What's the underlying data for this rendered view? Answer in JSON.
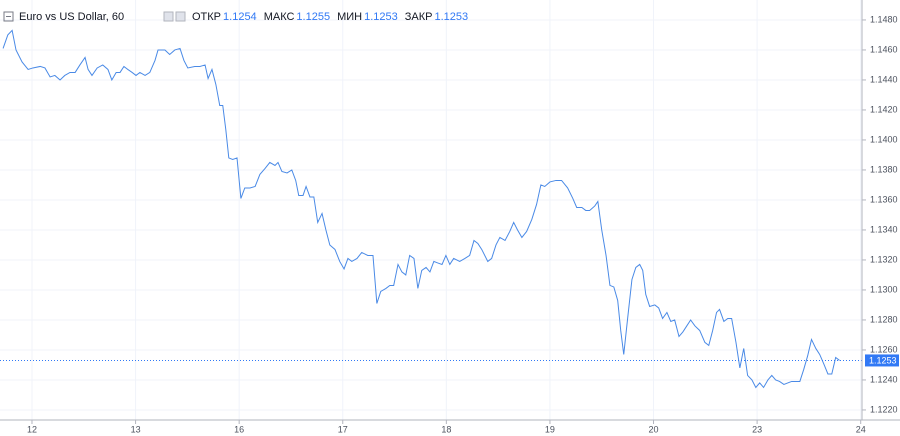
{
  "chart_data": {
    "type": "line",
    "title": "Euro vs US Dollar, 60",
    "ohlc": [
      {
        "label": "ОТКР",
        "value": 1.1254
      },
      {
        "label": "МАКС",
        "value": 1.1255
      },
      {
        "label": "МИН",
        "value": 1.1253
      },
      {
        "label": "ЗАКР",
        "value": 1.1253
      }
    ],
    "last_price": 1.1253,
    "color": "#4a8ae6",
    "x": [
      1.3,
      2.4,
      3.4,
      4.3,
      5.7,
      7.1,
      8.2,
      9.9,
      11.0,
      12.2,
      13.3,
      14.5,
      15.6,
      16.8,
      18.0,
      19.1,
      20.3,
      21.0,
      21.9,
      23.1,
      24.4,
      25.6,
      26.5,
      27.5,
      28.4,
      29.3,
      30.2,
      31.2,
      32.1,
      33.0,
      34.2,
      35.3,
      36.5,
      37.2,
      38.8,
      39.9,
      41.1,
      42.3,
      43.2,
      44.1,
      45.7,
      46.9,
      48.1,
      48.8,
      49.7,
      50.6,
      51.5,
      52.2,
      52.9,
      53.6,
      54.5,
      55.5,
      56.4,
      57.3,
      58.5,
      59.7,
      60.8,
      62.0,
      63.1,
      64.3,
      65.0,
      65.9,
      67.1,
      68.2,
      69.1,
      69.8,
      70.8,
      71.5,
      72.4,
      73.3,
      74.2,
      75.2,
      76.1,
      77.0,
      78.2,
      79.3,
      80.3,
      81.2,
      82.1,
      83.3,
      84.4,
      85.8,
      87.0,
      87.9,
      88.8,
      90.0,
      90.9,
      91.8,
      92.8,
      93.7,
      94.6,
      95.5,
      96.5,
      97.4,
      98.3,
      99.3,
      100.2,
      101.1,
      102.0,
      103.0,
      103.9,
      104.8,
      105.7,
      107.1,
      108.3,
      109.4,
      110.4,
      111.3,
      112.2,
      113.6,
      114.5,
      115.5,
      116.4,
      117.6,
      118.7,
      119.6,
      120.5,
      121.5,
      122.6,
      123.8,
      124.9,
      125.9,
      126.8,
      128.0,
      129.4,
      130.7,
      132.1,
      133.3,
      134.2,
      135.4,
      136.3,
      137.2,
      138.4,
      139.1,
      140.0,
      141.0,
      141.9,
      142.8,
      143.7,
      144.4,
      145.1,
      146.0,
      147.0,
      147.9,
      148.8,
      149.5,
      150.2,
      151.1,
      152.3,
      153.2,
      154.1,
      155.1,
      156.0,
      156.9,
      157.9,
      158.8,
      159.7,
      160.6,
      161.6,
      162.7,
      163.9,
      164.8,
      165.7,
      166.6,
      167.3,
      168.3,
      169.2,
      170.1,
      171.1,
      172.0,
      172.9,
      173.8,
      174.8,
      175.7,
      176.6,
      177.5,
      178.5,
      179.4,
      180.3,
      181.2,
      182.2,
      184.0,
      185.9,
      186.8,
      187.7,
      188.6,
      189.6,
      190.5,
      191.4,
      192.4,
      193.3,
      194.2,
      195.1
    ],
    "values": [
      1.1461,
      1.147,
      1.1473,
      1.146,
      1.1452,
      1.1447,
      1.1448,
      1.1449,
      1.1448,
      1.1442,
      1.1443,
      1.144,
      1.1443,
      1.1445,
      1.1445,
      1.145,
      1.1455,
      1.1447,
      1.1443,
      1.1448,
      1.145,
      1.1447,
      1.144,
      1.1445,
      1.1445,
      1.1449,
      1.1447,
      1.1445,
      1.1443,
      1.1445,
      1.1443,
      1.1445,
      1.1453,
      1.146,
      1.146,
      1.1457,
      1.146,
      1.1461,
      1.1453,
      1.1448,
      1.1449,
      1.1449,
      1.145,
      1.1441,
      1.1447,
      1.1437,
      1.1423,
      1.1423,
      1.1407,
      1.1388,
      1.1387,
      1.1388,
      1.1361,
      1.1368,
      1.1368,
      1.1369,
      1.1377,
      1.1381,
      1.1385,
      1.1383,
      1.1385,
      1.1379,
      1.1378,
      1.138,
      1.1373,
      1.1363,
      1.1363,
      1.1369,
      1.1362,
      1.1362,
      1.1345,
      1.1351,
      1.134,
      1.133,
      1.1327,
      1.1319,
      1.1314,
      1.1321,
      1.1319,
      1.1321,
      1.1325,
      1.1323,
      1.1323,
      1.1291,
      1.1299,
      1.1301,
      1.1303,
      1.1303,
      1.1317,
      1.1312,
      1.131,
      1.1323,
      1.1321,
      1.1301,
      1.1313,
      1.1315,
      1.1312,
      1.1319,
      1.1318,
      1.1317,
      1.1323,
      1.1317,
      1.1321,
      1.1319,
      1.1321,
      1.1323,
      1.1333,
      1.1331,
      1.1327,
      1.1319,
      1.1321,
      1.133,
      1.1335,
      1.1333,
      1.1339,
      1.1345,
      1.134,
      1.1335,
      1.1339,
      1.1347,
      1.1357,
      1.137,
      1.1369,
      1.1372,
      1.1373,
      1.1373,
      1.1368,
      1.1361,
      1.1355,
      1.1355,
      1.1353,
      1.1353,
      1.1356,
      1.1359,
      1.134,
      1.1323,
      1.1303,
      1.1302,
      1.1293,
      1.1273,
      1.1257,
      1.1281,
      1.1307,
      1.1315,
      1.1317,
      1.1313,
      1.1297,
      1.1289,
      1.129,
      1.1288,
      1.1281,
      1.1285,
      1.1279,
      1.128,
      1.1269,
      1.1272,
      1.1276,
      1.128,
      1.1276,
      1.1273,
      1.1265,
      1.1263,
      1.1273,
      1.1285,
      1.1287,
      1.1279,
      1.1281,
      1.1281,
      1.1265,
      1.1248,
      1.1261,
      1.1243,
      1.124,
      1.1235,
      1.1238,
      1.1235,
      1.124,
      1.1243,
      1.124,
      1.1239,
      1.1237,
      1.1239,
      1.1239,
      1.1247,
      1.1256,
      1.1267,
      1.1261,
      1.1257,
      1.1251,
      1.1244,
      1.1244,
      1.1255,
      1.1253
    ],
    "xlim": [
      0.59,
      200.3
    ],
    "xticks": [
      {
        "value": 8,
        "label": "12"
      },
      {
        "value": 32,
        "label": "13"
      },
      {
        "value": 56,
        "label": "16"
      },
      {
        "value": 80,
        "label": "17"
      },
      {
        "value": 104,
        "label": "18"
      },
      {
        "value": 128,
        "label": "19"
      },
      {
        "value": 152,
        "label": "20"
      },
      {
        "value": 176,
        "label": "23"
      },
      {
        "value": 200,
        "label": "24"
      }
    ],
    "ylim": [
      1.12133,
      1.14933
    ],
    "yticks": [
      {
        "value": 1.148,
        "label": "1.1480"
      },
      {
        "value": 1.146,
        "label": "1.1460"
      },
      {
        "value": 1.144,
        "label": "1.1440"
      },
      {
        "value": 1.142,
        "label": "1.1420"
      },
      {
        "value": 1.14,
        "label": "1.1400"
      },
      {
        "value": 1.138,
        "label": "1.1380"
      },
      {
        "value": 1.136,
        "label": "1.1360"
      },
      {
        "value": 1.134,
        "label": "1.1340"
      },
      {
        "value": 1.132,
        "label": "1.1320"
      },
      {
        "value": 1.13,
        "label": "1.1300"
      },
      {
        "value": 1.128,
        "label": "1.1280"
      },
      {
        "value": 1.126,
        "label": "1.1260"
      },
      {
        "value": 1.124,
        "label": "1.1240"
      },
      {
        "value": 1.122,
        "label": "1.1220"
      }
    ],
    "grid": true
  }
}
